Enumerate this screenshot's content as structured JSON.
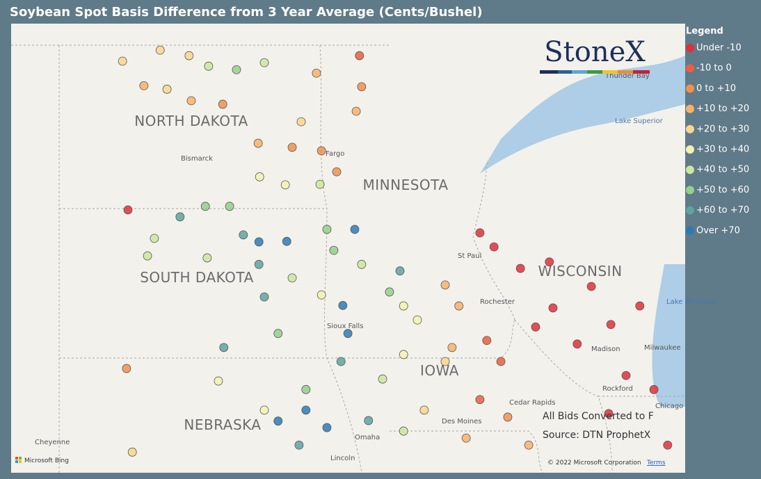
{
  "header": {
    "title": "Soybean Spot Basis Difference from 3 Year Average (Cents/Bushel)"
  },
  "logo": "StoneX",
  "legend": {
    "title": "Legend",
    "items": [
      {
        "label": "Under -10",
        "color": "#e0303b"
      },
      {
        "label": "-10 to 0",
        "color": "#e8603f"
      },
      {
        "label": "0 to +10",
        "color": "#f0904f"
      },
      {
        "label": "+10 to +20",
        "color": "#f6b26b"
      },
      {
        "label": "+20 to +30",
        "color": "#f8d68e"
      },
      {
        "label": "+30 to +40",
        "color": "#f2f3b0"
      },
      {
        "label": "+40 to +50",
        "color": "#cbe6a0"
      },
      {
        "label": "+50 to +60",
        "color": "#93cf8d"
      },
      {
        "label": "+60 to +70",
        "color": "#5fa3a0"
      },
      {
        "label": "Over +70",
        "color": "#2c7bb6"
      }
    ]
  },
  "map": {
    "states": [
      "NORTH DAKOTA",
      "SOUTH DAKOTA",
      "NEBRASKA",
      "MINNESOTA",
      "IOWA",
      "WISCONSIN"
    ],
    "cities": [
      "Bismarck",
      "Fargo",
      "St Paul",
      "Rochester",
      "Sioux Falls",
      "Madison",
      "Milwaukee",
      "Chicago",
      "Rockford",
      "Cedar Rapids",
      "Des Moines",
      "Omaha",
      "Lincoln",
      "Cheyenne",
      "Thunder Bay"
    ],
    "water": [
      "Lake Superior",
      "Lake Michigan"
    ],
    "notes": [
      "All Bids Converted to F",
      "Source: DTN ProphetX"
    ],
    "attribution": "© 2022 Microsoft Corporation",
    "terms": "Terms",
    "provider": "Microsoft Bing"
  },
  "points": [
    {
      "lon": -102.42,
      "lat": 48.75,
      "category": 4
    },
    {
      "lon": -101.38,
      "lat": 48.97,
      "category": 4
    },
    {
      "lon": -100.58,
      "lat": 48.86,
      "category": 4
    },
    {
      "lon": -101.83,
      "lat": 48.26,
      "category": 3
    },
    {
      "lon": -101.19,
      "lat": 48.19,
      "category": 4
    },
    {
      "lon": -100.52,
      "lat": 47.96,
      "category": 3
    },
    {
      "lon": -99.65,
      "lat": 47.89,
      "category": 2
    },
    {
      "lon": -98.67,
      "lat": 47.11,
      "category": 3
    },
    {
      "lon": -97.73,
      "lat": 47.03,
      "category": 2
    },
    {
      "lon": -96.92,
      "lat": 46.96,
      "category": 2
    },
    {
      "lon": -96.5,
      "lat": 46.54,
      "category": 2
    },
    {
      "lon": -95.87,
      "lat": 48.86,
      "category": 1
    },
    {
      "lon": -95.81,
      "lat": 48.24,
      "category": 2
    },
    {
      "lon": -95.96,
      "lat": 47.75,
      "category": 3
    },
    {
      "lon": -97.06,
      "lat": 48.51,
      "category": 3
    },
    {
      "lon": -98.5,
      "lat": 48.72,
      "category": 6
    },
    {
      "lon": -99.27,
      "lat": 48.58,
      "category": 7
    },
    {
      "lon": -100.04,
      "lat": 48.65,
      "category": 6
    },
    {
      "lon": -97.48,
      "lat": 47.54,
      "category": 4
    },
    {
      "lon": -98.63,
      "lat": 46.44,
      "category": 5
    },
    {
      "lon": -97.92,
      "lat": 46.28,
      "category": 5
    },
    {
      "lon": -96.96,
      "lat": 46.29,
      "category": 6
    },
    {
      "lon": -102.27,
      "lat": 45.78,
      "category": 0
    },
    {
      "lon": -100.83,
      "lat": 45.64,
      "category": 8
    },
    {
      "lon": -100.13,
      "lat": 45.85,
      "category": 7
    },
    {
      "lon": -99.46,
      "lat": 45.85,
      "category": 7
    },
    {
      "lon": -99.08,
      "lat": 45.28,
      "category": 8
    },
    {
      "lon": -98.65,
      "lat": 45.14,
      "category": 9
    },
    {
      "lon": -98.65,
      "lat": 44.69,
      "category": 8
    },
    {
      "lon": -97.88,
      "lat": 45.15,
      "category": 9
    },
    {
      "lon": -98.5,
      "lat": 44.04,
      "category": 8
    },
    {
      "lon": -101.54,
      "lat": 45.21,
      "category": 6
    },
    {
      "lon": -101.73,
      "lat": 44.86,
      "category": 6
    },
    {
      "lon": -100.08,
      "lat": 44.82,
      "category": 6
    },
    {
      "lon": -97.73,
      "lat": 44.42,
      "category": 6
    },
    {
      "lon": -96.92,
      "lat": 44.08,
      "category": 5
    },
    {
      "lon": -96.33,
      "lat": 43.87,
      "category": 9
    },
    {
      "lon": -96.0,
      "lat": 45.39,
      "category": 9
    },
    {
      "lon": -96.77,
      "lat": 45.39,
      "category": 7
    },
    {
      "lon": -96.58,
      "lat": 44.97,
      "category": 7
    },
    {
      "lon": -95.81,
      "lat": 44.69,
      "category": 6
    },
    {
      "lon": -94.75,
      "lat": 44.56,
      "category": 8
    },
    {
      "lon": -94.65,
      "lat": 43.86,
      "category": 5
    },
    {
      "lon": -93.5,
      "lat": 44.28,
      "category": 3
    },
    {
      "lon": -93.12,
      "lat": 43.86,
      "category": 3
    },
    {
      "lon": -92.54,
      "lat": 45.32,
      "category": 0
    },
    {
      "lon": -92.15,
      "lat": 45.04,
      "category": 0
    },
    {
      "lon": -91.42,
      "lat": 44.61,
      "category": 0
    },
    {
      "lon": -90.62,
      "lat": 44.74,
      "category": 0
    },
    {
      "lon": -89.46,
      "lat": 44.25,
      "category": 0
    },
    {
      "lon": -90.52,
      "lat": 43.82,
      "category": 0
    },
    {
      "lon": -91.0,
      "lat": 43.44,
      "category": 0
    },
    {
      "lon": -89.85,
      "lat": 43.1,
      "category": 0
    },
    {
      "lon": -88.92,
      "lat": 43.49,
      "category": 0
    },
    {
      "lon": -88.12,
      "lat": 43.86,
      "category": 0
    },
    {
      "lon": -88.5,
      "lat": 42.47,
      "category": 0
    },
    {
      "lon": -88.98,
      "lat": 41.71,
      "category": 0
    },
    {
      "lon": -92.35,
      "lat": 43.17,
      "category": 1
    },
    {
      "lon": -91.96,
      "lat": 42.75,
      "category": 1
    },
    {
      "lon": -92.54,
      "lat": 41.99,
      "category": 1
    },
    {
      "lon": -91.77,
      "lat": 41.64,
      "category": 2
    },
    {
      "lon": -91.19,
      "lat": 41.08,
      "category": 3
    },
    {
      "lon": -93.5,
      "lat": 42.75,
      "category": 4
    },
    {
      "lon": -94.65,
      "lat": 42.89,
      "category": 5
    },
    {
      "lon": -95.23,
      "lat": 42.4,
      "category": 6
    },
    {
      "lon": -96.38,
      "lat": 42.75,
      "category": 8
    },
    {
      "lon": -96.19,
      "lat": 43.31,
      "category": 9
    },
    {
      "lon": -98.12,
      "lat": 43.31,
      "category": 7
    },
    {
      "lon": -99.62,
      "lat": 43.03,
      "category": 8
    },
    {
      "lon": -102.31,
      "lat": 42.61,
      "category": 2
    },
    {
      "lon": -99.77,
      "lat": 42.36,
      "category": 5
    },
    {
      "lon": -97.35,
      "lat": 42.19,
      "category": 7
    },
    {
      "lon": -98.12,
      "lat": 41.56,
      "category": 9
    },
    {
      "lon": -97.35,
      "lat": 41.78,
      "category": 9
    },
    {
      "lon": -96.77,
      "lat": 41.43,
      "category": 9
    },
    {
      "lon": -97.54,
      "lat": 41.08,
      "category": 8
    },
    {
      "lon": -98.5,
      "lat": 41.78,
      "category": 5
    },
    {
      "lon": -95.62,
      "lat": 41.57,
      "category": 8
    },
    {
      "lon": -94.65,
      "lat": 41.36,
      "category": 6
    },
    {
      "lon": -94.08,
      "lat": 41.78,
      "category": 4
    },
    {
      "lon": -102.15,
      "lat": 40.94,
      "category": 4
    },
    {
      "lon": -93.31,
      "lat": 43.03,
      "category": 3
    },
    {
      "lon": -95.04,
      "lat": 44.14,
      "category": 7
    },
    {
      "lon": -94.27,
      "lat": 43.58,
      "category": 5
    },
    {
      "lon": -87.35,
      "lat": 41.08,
      "category": 0
    },
    {
      "lon": -92.92,
      "lat": 41.22,
      "category": 3
    },
    {
      "lon": -87.73,
      "lat": 42.19,
      "category": 0
    }
  ]
}
